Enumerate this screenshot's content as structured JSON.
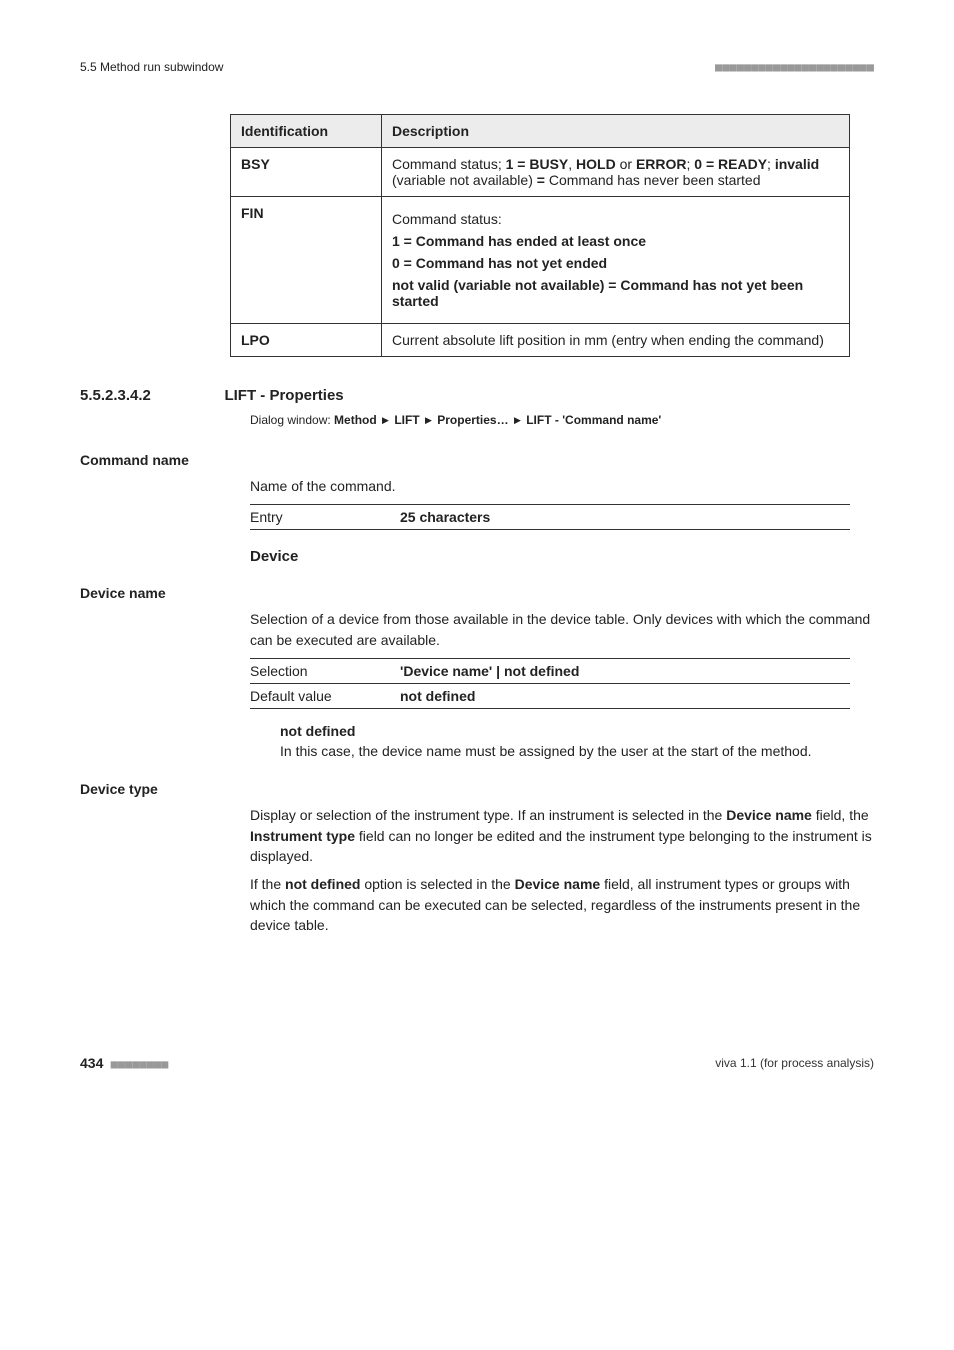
{
  "header": {
    "left": "5.5 Method run subwindow",
    "right_dots": "■■■■■■■■■■■■■■■■■■■■■■"
  },
  "table": {
    "head_ident": "Identification",
    "head_desc": "Description",
    "rows": {
      "bsy": {
        "ident": "BSY",
        "pre": "Command status; ",
        "b1": "1 = BUSY",
        "sep1": ", ",
        "b2": "HOLD",
        "mid1": " or ",
        "b3": "ERROR",
        "sep2": "; ",
        "b4": "0 = READY",
        "sep3": "; ",
        "b5": "invalid",
        "mid2": " (variable not available) ",
        "b6": "=",
        "post": " Command has never been started"
      },
      "fin": {
        "ident": "FIN",
        "line0": "Command status:",
        "line1": "1 = Command has ended at least once",
        "line2": "0 = Command has not yet ended",
        "line3": "not valid (variable not available) = Command has not yet been started"
      },
      "lpo": {
        "ident": "LPO",
        "desc": "Current absolute lift position in mm (entry when ending the command)"
      }
    }
  },
  "section": {
    "num": "5.5.2.3.4.2",
    "title": "LIFT - Properties",
    "dialog_prefix": "Dialog window: ",
    "crumbs": [
      "Method",
      "LIFT",
      "Properties…",
      "LIFT - 'Command name'"
    ]
  },
  "command_name": {
    "label": "Command name",
    "desc": "Name of the command.",
    "entry_key": "Entry",
    "entry_val": "25 characters"
  },
  "device_heading": "Device",
  "device_name": {
    "label": "Device name",
    "desc": "Selection of a device from those available in the device table. Only devices with which the command can be executed are available.",
    "sel_key": "Selection",
    "sel_val": "'Device name' | not defined",
    "def_key": "Default value",
    "def_val": "not defined",
    "sub_title": "not defined",
    "sub_body": "In this case, the device name must be assigned by the user at the start of the method."
  },
  "device_type": {
    "label": "Device type",
    "p1_pre": "Display or selection of the instrument type. If an instrument is selected in the ",
    "p1_b1": "Device name",
    "p1_mid": " field, the ",
    "p1_b2": "Instrument type",
    "p1_post": " field can no longer be edited and the instrument type belonging to the instrument is displayed.",
    "p2_pre": "If the ",
    "p2_b1": "not defined",
    "p2_mid": " option is selected in the ",
    "p2_b2": "Device name",
    "p2_post": " field, all instrument types or groups with which the command can be executed can be selected, regardless of the instruments present in the device table."
  },
  "footer": {
    "page": "434",
    "dots": " ■■■■■■■■",
    "right": "viva 1.1 (for process analysis)"
  }
}
